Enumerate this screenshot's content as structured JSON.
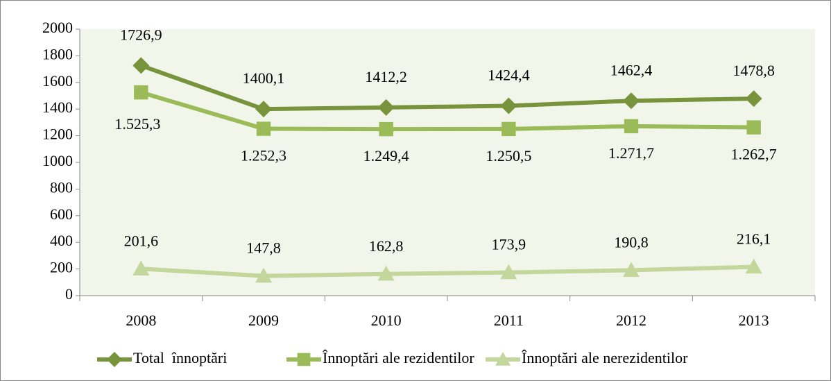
{
  "chart_data": {
    "type": "line",
    "categories": [
      "2008",
      "2009",
      "2010",
      "2011",
      "2012",
      "2013"
    ],
    "series": [
      {
        "name": "Total  înnoptări",
        "color": "#77933c",
        "marker": "diamond",
        "values": [
          1726.9,
          1400.1,
          1412.2,
          1424.4,
          1462.4,
          1478.8
        ],
        "value_labels": [
          "1726,9",
          "1400,1",
          "1412,2",
          "1424,4",
          "1462,4",
          "1478,8"
        ]
      },
      {
        "name": "Înnoptări ale rezidentilor",
        "color": "#9bbb59",
        "marker": "square",
        "values": [
          1525.3,
          1252.3,
          1249.4,
          1250.5,
          1271.7,
          1262.7
        ],
        "value_labels": [
          "1.525,3",
          "1.252,3",
          "1.249,4",
          "1.250,5",
          "1.271,7",
          "1.262,7"
        ]
      },
      {
        "name": "Înnoptări ale nerezidentilor",
        "color": "#c3d69b",
        "marker": "triangle",
        "values": [
          201.6,
          147.8,
          162.8,
          173.9,
          190.8,
          216.1
        ],
        "value_labels": [
          "201,6",
          "147,8",
          "162,8",
          "173,9",
          "190,8",
          "216,1"
        ]
      }
    ],
    "ylim": [
      0,
      2000
    ],
    "yticks": [
      0,
      200,
      400,
      600,
      800,
      1000,
      1200,
      1400,
      1600,
      1800,
      2000
    ],
    "grid": false,
    "legend": "bottom",
    "plot_background": "#f2f5ea"
  }
}
